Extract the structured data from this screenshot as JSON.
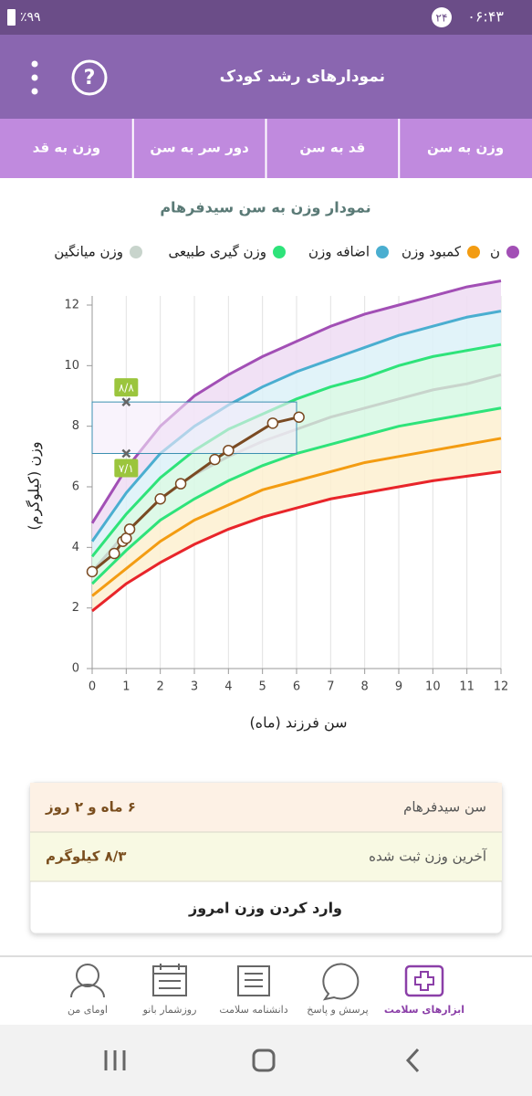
{
  "status_bar": {
    "battery": "٪۹۹",
    "badge": "۲۴",
    "time": "۰۶:۴۳"
  },
  "header": {
    "title": "نمودارهای رشد کودک",
    "help_icon": "?"
  },
  "tabs": [
    "وزن به سن",
    "قد به سن",
    "دور سر به سن",
    "وزن به قد"
  ],
  "chart_data": {
    "type": "line",
    "title": "نمودار وزن به سن سیدفرهام",
    "x_label": "سن فرزند (ماه)",
    "y_label": "وزن (کیلوگرم)",
    "x": [
      0,
      1,
      2,
      3,
      4,
      5,
      6,
      7,
      8,
      9,
      10,
      11,
      12
    ],
    "xlim": [
      0,
      12
    ],
    "xticks": [
      0,
      1,
      2,
      3,
      4,
      5,
      6,
      7,
      8,
      9,
      10,
      11,
      12
    ],
    "ylim": [
      0,
      12
    ],
    "yticks": [
      0,
      2,
      4,
      6,
      8,
      10,
      12
    ],
    "grid": "x",
    "series": [
      {
        "name": "ن",
        "color": "#a24fb5",
        "fill": "#efdcf3",
        "values": [
          4.8,
          6.6,
          8.0,
          9.0,
          9.7,
          10.3,
          10.8,
          11.3,
          11.7,
          12.0,
          12.3,
          12.6,
          12.8
        ]
      },
      {
        "name": "کمبود وزن",
        "color": "#f39c12",
        "fill": "#fdf0d0",
        "values": [
          2.4,
          3.3,
          4.2,
          4.9,
          5.4,
          5.9,
          6.2,
          6.5,
          6.8,
          7.0,
          7.2,
          7.4,
          7.6
        ]
      },
      {
        "name": "اضافه وزن",
        "color": "#4aaed0",
        "fill": "#dcf1f8",
        "values": [
          4.2,
          5.8,
          7.1,
          8.0,
          8.7,
          9.3,
          9.8,
          10.2,
          10.6,
          11.0,
          11.3,
          11.6,
          11.8
        ]
      },
      {
        "name": "وزن گیری طبیعی",
        "color": "#2ee37a",
        "fill": "#d7f8e4",
        "values": [
          3.7,
          5.1,
          6.3,
          7.2,
          7.9,
          8.4,
          8.9,
          9.3,
          9.6,
          10.0,
          10.3,
          10.5,
          10.7
        ]
      },
      {
        "name": "وزن میانگین",
        "color": "#c8d4cc",
        "fill": "#d7f8e4",
        "values": [
          3.2,
          4.5,
          5.6,
          6.4,
          7.0,
          7.5,
          7.9,
          8.3,
          8.6,
          8.9,
          9.2,
          9.4,
          9.7
        ]
      },
      {
        "color": "#2ee37a",
        "fill": "#fdf0d0",
        "values": [
          2.8,
          3.9,
          4.9,
          5.6,
          6.2,
          6.7,
          7.1,
          7.4,
          7.7,
          8.0,
          8.2,
          8.4,
          8.6
        ]
      },
      {
        "color": "#e8252a",
        "fill": "#fbdde0",
        "values": [
          1.9,
          2.8,
          3.5,
          4.1,
          4.6,
          5.0,
          5.3,
          5.6,
          5.8,
          6.0,
          6.2,
          6.35,
          6.5
        ]
      }
    ],
    "child": {
      "color": "#7a4a22",
      "x": [
        0,
        0.65,
        0.9,
        1.0,
        1.1,
        2.0,
        2.6,
        3.6,
        4.0,
        5.3,
        6.07
      ],
      "values": [
        3.2,
        3.8,
        4.2,
        4.3,
        4.6,
        5.6,
        6.1,
        6.9,
        7.2,
        8.1,
        8.3
      ]
    },
    "highlight": {
      "color": "#3a8fb0",
      "xlim": [
        0,
        6
      ],
      "ylim": [
        7.1,
        8.8
      ]
    },
    "markers": {
      "x": 1,
      "values": [
        8.8,
        7.1
      ],
      "value_labels": [
        "۸/۸",
        "۷/۱"
      ]
    }
  },
  "info_card": {
    "rows": [
      [
        "سن سیدفرهام",
        "۶ ماه و ۲ روز"
      ],
      [
        "آخرین وزن ثبت شده",
        "۸/۳ کیلوگرم"
      ]
    ],
    "button": "وارد کردن وزن امروز"
  },
  "bottom_nav": [
    "ابزارهای سلامت",
    "پرسش و پاسخ",
    "دانشنامه سلامت",
    "روزشمار بانو",
    "اومای من"
  ]
}
